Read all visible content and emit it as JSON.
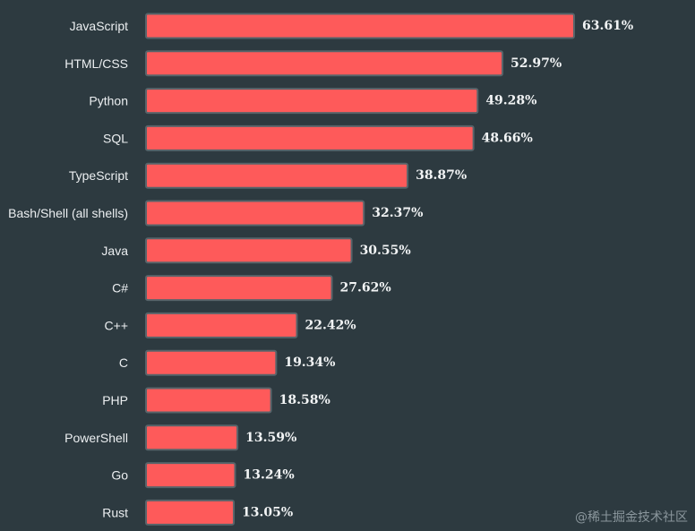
{
  "chart_data": {
    "type": "bar",
    "orientation": "horizontal",
    "categories": [
      "JavaScript",
      "HTML/CSS",
      "Python",
      "SQL",
      "TypeScript",
      "Bash/Shell (all shells)",
      "Java",
      "C#",
      "C++",
      "C",
      "PHP",
      "PowerShell",
      "Go",
      "Rust"
    ],
    "values": [
      63.61,
      52.97,
      49.28,
      48.66,
      38.87,
      32.37,
      30.55,
      27.62,
      22.42,
      19.34,
      18.58,
      13.59,
      13.24,
      13.05
    ],
    "value_labels": [
      "63.61%",
      "52.97%",
      "49.28%",
      "48.66%",
      "38.87%",
      "32.37%",
      "30.55%",
      "27.62%",
      "22.42%",
      "19.34%",
      "18.58%",
      "13.59%",
      "13.24%",
      "13.05%"
    ],
    "title": "",
    "xlabel": "",
    "ylabel": "",
    "xlim": [
      0,
      63.61
    ],
    "grid": false,
    "legend": "none",
    "colors": {
      "background": "#2d3a40",
      "bar": "#fe5a5a",
      "bar_border": "#57646a",
      "text": "#eceff1"
    }
  },
  "watermark": "@稀土掘金技术社区"
}
